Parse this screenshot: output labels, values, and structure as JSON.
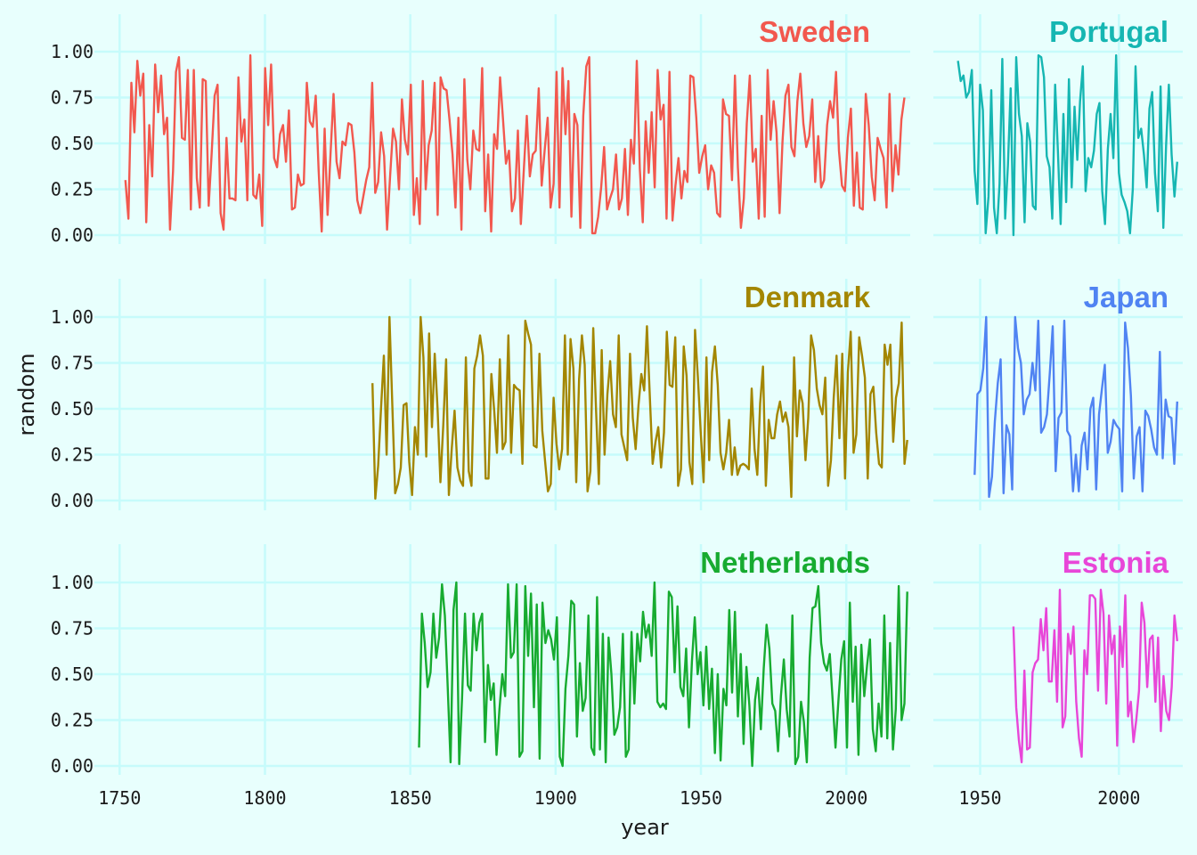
{
  "chart_data": {
    "type": "line",
    "xlabel": "year",
    "ylabel": "random",
    "ylim": [
      0,
      1
    ],
    "y_ticks": [
      "0.00",
      "0.25",
      "0.50",
      "0.75",
      "1.00"
    ],
    "grid": true,
    "legend": "none",
    "layout": "facets-3-rows-2-columns",
    "columns": [
      {
        "xlim": [
          1745,
          2022
        ],
        "x_ticks": [
          "1750",
          "1800",
          "1850",
          "1900",
          "1950",
          "2000"
        ]
      },
      {
        "xlim": [
          1937,
          2023
        ],
        "x_ticks": [
          "1950",
          "2000"
        ]
      }
    ],
    "panels": [
      {
        "name": "Sweden",
        "color": "#f2584e",
        "row": 0,
        "col": 0,
        "start_year": 1752,
        "end_year": 2020,
        "values": [
          0.3,
          0.09,
          0.83,
          0.56,
          0.95,
          0.76,
          0.88,
          0.07,
          0.6,
          0.32,
          0.93,
          0.67,
          0.87,
          0.55,
          0.64,
          0.03,
          0.35,
          0.89,
          0.97,
          0.53,
          0.52,
          0.9,
          0.14,
          0.9,
          0.31,
          0.15,
          0.85,
          0.84,
          0.16,
          0.45,
          0.76,
          0.82,
          0.12,
          0.03,
          0.53,
          0.2,
          0.2,
          0.19,
          0.86,
          0.51,
          0.63,
          0.19,
          0.98,
          0.22,
          0.2,
          0.33,
          0.05,
          0.91,
          0.6,
          0.93,
          0.42,
          0.37,
          0.55,
          0.6,
          0.4,
          0.68,
          0.14,
          0.15,
          0.33,
          0.27,
          0.28,
          0.83,
          0.62,
          0.59,
          0.76,
          0.35,
          0.02,
          0.58,
          0.11,
          0.45,
          0.77,
          0.4,
          0.31,
          0.51,
          0.49,
          0.61,
          0.6,
          0.45,
          0.19,
          0.12,
          0.21,
          0.3,
          0.37,
          0.83,
          0.23,
          0.29,
          0.56,
          0.43,
          0.03,
          0.32,
          0.58,
          0.51,
          0.25,
          0.74,
          0.52,
          0.44,
          0.82,
          0.11,
          0.31,
          0.06,
          0.84,
          0.25,
          0.49,
          0.57,
          0.83,
          0.11,
          0.86,
          0.8,
          0.79,
          0.63,
          0.44,
          0.15,
          0.64,
          0.03,
          0.85,
          0.41,
          0.25,
          0.57,
          0.47,
          0.46,
          0.91,
          0.13,
          0.44,
          0.02,
          0.55,
          0.47,
          0.86,
          0.63,
          0.39,
          0.46,
          0.13,
          0.2,
          0.57,
          0.06,
          0.36,
          0.65,
          0.32,
          0.44,
          0.46,
          0.8,
          0.27,
          0.46,
          0.64,
          0.15,
          0.28,
          0.89,
          0.15,
          0.91,
          0.55,
          0.84,
          0.1,
          0.66,
          0.6,
          0.04,
          0.65,
          0.92,
          0.97,
          0.01,
          0.01,
          0.1,
          0.26,
          0.48,
          0.14,
          0.2,
          0.25,
          0.44,
          0.14,
          0.2,
          0.47,
          0.11,
          0.52,
          0.39,
          0.95,
          0.36,
          0.07,
          0.62,
          0.34,
          0.67,
          0.26,
          0.9,
          0.63,
          0.71,
          0.09,
          0.89,
          0.08,
          0.27,
          0.42,
          0.2,
          0.35,
          0.29,
          0.87,
          0.86,
          0.64,
          0.34,
          0.43,
          0.49,
          0.25,
          0.38,
          0.34,
          0.12,
          0.1,
          0.74,
          0.66,
          0.65,
          0.3,
          0.87,
          0.37,
          0.04,
          0.2,
          0.61,
          0.87,
          0.4,
          0.47,
          0.09,
          0.65,
          0.1,
          0.9,
          0.52,
          0.73,
          0.56,
          0.12,
          0.51,
          0.76,
          0.82,
          0.48,
          0.43,
          0.73,
          0.88,
          0.61,
          0.48,
          0.54,
          0.74,
          0.29,
          0.54,
          0.26,
          0.3,
          0.6,
          0.73,
          0.64,
          0.89,
          0.46,
          0.27,
          0.24,
          0.53,
          0.69,
          0.16,
          0.45,
          0.15,
          0.14,
          0.77,
          0.6,
          0.32,
          0.19,
          0.53,
          0.47,
          0.42,
          0.15,
          0.77,
          0.24,
          0.49,
          0.33,
          0.63,
          0.75
        ]
      },
      {
        "name": "Portugal",
        "color": "#16b6b2",
        "row": 0,
        "col": 1,
        "start_year": 1942,
        "end_year": 2021,
        "values": [
          0.95,
          0.84,
          0.87,
          0.75,
          0.78,
          0.9,
          0.35,
          0.17,
          0.82,
          0.68,
          0.01,
          0.21,
          0.79,
          0.15,
          0.01,
          0.28,
          0.96,
          0.09,
          0.38,
          0.8,
          0.0,
          0.97,
          0.66,
          0.54,
          0.07,
          0.61,
          0.51,
          0.16,
          0.14,
          0.98,
          0.97,
          0.86,
          0.43,
          0.37,
          0.09,
          0.82,
          0.46,
          0.06,
          0.66,
          0.18,
          0.85,
          0.26,
          0.7,
          0.41,
          0.73,
          0.92,
          0.24,
          0.42,
          0.37,
          0.46,
          0.66,
          0.72,
          0.24,
          0.06,
          0.47,
          0.66,
          0.42,
          0.98,
          0.34,
          0.22,
          0.18,
          0.13,
          0.01,
          0.25,
          0.92,
          0.53,
          0.58,
          0.44,
          0.26,
          0.69,
          0.78,
          0.34,
          0.13,
          0.81,
          0.04,
          0.49,
          0.82,
          0.44,
          0.21,
          0.4
        ]
      },
      {
        "name": "Denmark",
        "color": "#a38600",
        "row": 1,
        "col": 0,
        "start_year": 1837,
        "end_year": 2021,
        "values": [
          0.64,
          0.01,
          0.19,
          0.5,
          0.79,
          0.25,
          1.0,
          0.52,
          0.04,
          0.09,
          0.18,
          0.52,
          0.53,
          0.21,
          0.03,
          0.4,
          0.25,
          1.0,
          0.78,
          0.24,
          0.91,
          0.4,
          0.8,
          0.5,
          0.1,
          0.41,
          0.77,
          0.03,
          0.28,
          0.49,
          0.18,
          0.11,
          0.08,
          0.78,
          0.16,
          0.08,
          0.72,
          0.79,
          0.9,
          0.79,
          0.12,
          0.12,
          0.69,
          0.49,
          0.26,
          0.77,
          0.28,
          0.32,
          0.9,
          0.26,
          0.63,
          0.61,
          0.6,
          0.2,
          0.98,
          0.91,
          0.85,
          0.3,
          0.29,
          0.8,
          0.38,
          0.21,
          0.05,
          0.09,
          0.56,
          0.31,
          0.17,
          0.28,
          0.9,
          0.25,
          0.88,
          0.72,
          0.1,
          0.66,
          0.9,
          0.74,
          0.05,
          0.16,
          0.94,
          0.5,
          0.09,
          0.82,
          0.25,
          0.58,
          0.76,
          0.47,
          0.4,
          0.9,
          0.36,
          0.29,
          0.22,
          0.8,
          0.45,
          0.28,
          0.52,
          0.69,
          0.6,
          0.95,
          0.57,
          0.2,
          0.32,
          0.4,
          0.18,
          0.37,
          0.92,
          0.63,
          0.62,
          0.89,
          0.08,
          0.17,
          0.84,
          0.68,
          0.21,
          0.09,
          0.93,
          0.67,
          0.37,
          0.1,
          0.78,
          0.22,
          0.7,
          0.84,
          0.63,
          0.26,
          0.17,
          0.26,
          0.44,
          0.14,
          0.29,
          0.14,
          0.19,
          0.2,
          0.19,
          0.17,
          0.61,
          0.28,
          0.14,
          0.53,
          0.73,
          0.08,
          0.44,
          0.34,
          0.34,
          0.47,
          0.54,
          0.43,
          0.48,
          0.4,
          0.02,
          0.78,
          0.35,
          0.6,
          0.53,
          0.22,
          0.45,
          0.9,
          0.82,
          0.61,
          0.52,
          0.47,
          0.67,
          0.08,
          0.22,
          0.56,
          0.79,
          0.34,
          0.8,
          0.12,
          0.7,
          0.92,
          0.26,
          0.36,
          0.89,
          0.79,
          0.67,
          0.12,
          0.58,
          0.62,
          0.37,
          0.2,
          0.18,
          0.85,
          0.74,
          0.85,
          0.32,
          0.56,
          0.64,
          0.97,
          0.2,
          0.33
        ]
      },
      {
        "name": "Japan",
        "color": "#5083f2",
        "row": 1,
        "col": 1,
        "start_year": 1948,
        "end_year": 2021,
        "values": [
          0.14,
          0.58,
          0.6,
          0.72,
          1.0,
          0.02,
          0.13,
          0.43,
          0.64,
          0.77,
          0.04,
          0.41,
          0.36,
          0.06,
          1.0,
          0.83,
          0.75,
          0.47,
          0.55,
          0.58,
          0.75,
          0.6,
          0.98,
          0.37,
          0.4,
          0.47,
          0.7,
          0.95,
          0.16,
          0.45,
          0.48,
          0.98,
          0.38,
          0.35,
          0.05,
          0.25,
          0.05,
          0.3,
          0.37,
          0.17,
          0.5,
          0.56,
          0.06,
          0.47,
          0.61,
          0.74,
          0.26,
          0.32,
          0.44,
          0.41,
          0.39,
          0.05,
          0.97,
          0.83,
          0.57,
          0.12,
          0.35,
          0.4,
          0.05,
          0.49,
          0.46,
          0.39,
          0.29,
          0.25,
          0.81,
          0.23,
          0.55,
          0.46,
          0.45,
          0.2,
          0.54
        ]
      },
      {
        "name": "Netherlands",
        "color": "#17ab30",
        "row": 2,
        "col": 0,
        "start_year": 1853,
        "end_year": 2021,
        "values": [
          0.1,
          0.83,
          0.67,
          0.43,
          0.51,
          0.83,
          0.59,
          0.7,
          0.99,
          0.82,
          0.43,
          0.02,
          0.85,
          1.0,
          0.01,
          0.37,
          0.83,
          0.44,
          0.41,
          0.83,
          0.63,
          0.78,
          0.83,
          0.13,
          0.55,
          0.36,
          0.45,
          0.06,
          0.31,
          0.5,
          0.38,
          0.99,
          0.59,
          0.62,
          0.99,
          0.05,
          0.08,
          0.98,
          0.6,
          0.94,
          0.32,
          0.88,
          0.04,
          0.89,
          0.67,
          0.74,
          0.69,
          0.58,
          0.81,
          0.05,
          0.0,
          0.42,
          0.6,
          0.9,
          0.88,
          0.16,
          0.56,
          0.3,
          0.37,
          0.82,
          0.1,
          0.06,
          0.92,
          0.09,
          0.72,
          0.02,
          0.7,
          0.5,
          0.17,
          0.21,
          0.32,
          0.72,
          0.05,
          0.09,
          0.73,
          0.34,
          0.72,
          0.57,
          0.84,
          0.7,
          0.77,
          0.6,
          1.0,
          0.35,
          0.32,
          0.34,
          0.31,
          0.95,
          0.92,
          0.51,
          0.87,
          0.43,
          0.38,
          0.64,
          0.21,
          0.57,
          0.81,
          0.5,
          0.62,
          0.33,
          0.65,
          0.31,
          0.53,
          0.07,
          0.5,
          0.03,
          0.42,
          0.33,
          0.85,
          0.4,
          0.84,
          0.27,
          0.61,
          0.12,
          0.54,
          0.33,
          0.0,
          0.36,
          0.48,
          0.2,
          0.53,
          0.77,
          0.64,
          0.34,
          0.3,
          0.08,
          0.38,
          0.58,
          0.31,
          0.16,
          0.82,
          0.01,
          0.05,
          0.35,
          0.24,
          0.02,
          0.59,
          0.86,
          0.87,
          0.98,
          0.67,
          0.56,
          0.52,
          0.61,
          0.36,
          0.1,
          0.35,
          0.58,
          0.68,
          0.1,
          0.89,
          0.35,
          0.65,
          0.06,
          0.66,
          0.38,
          0.55,
          0.69,
          0.2,
          0.08,
          0.34,
          0.16,
          0.82,
          0.15,
          0.67,
          0.09,
          0.31,
          0.98,
          0.25,
          0.34,
          0.95
        ]
      },
      {
        "name": "Estonia",
        "color": "#e846d8",
        "row": 2,
        "col": 1,
        "start_year": 1962,
        "end_year": 2021,
        "values": [
          0.76,
          0.32,
          0.14,
          0.02,
          0.52,
          0.09,
          0.1,
          0.51,
          0.56,
          0.58,
          0.8,
          0.63,
          0.86,
          0.46,
          0.46,
          0.74,
          0.35,
          0.96,
          0.21,
          0.27,
          0.72,
          0.61,
          0.76,
          0.35,
          0.15,
          0.05,
          0.63,
          0.5,
          0.93,
          0.93,
          0.91,
          0.41,
          0.96,
          0.83,
          0.34,
          0.82,
          0.61,
          0.71,
          0.11,
          0.76,
          0.54,
          0.93,
          0.27,
          0.35,
          0.13,
          0.25,
          0.41,
          0.89,
          0.78,
          0.43,
          0.69,
          0.71,
          0.35,
          0.7,
          0.19,
          0.49,
          0.3,
          0.25,
          0.43,
          0.82,
          0.68
        ]
      }
    ]
  }
}
